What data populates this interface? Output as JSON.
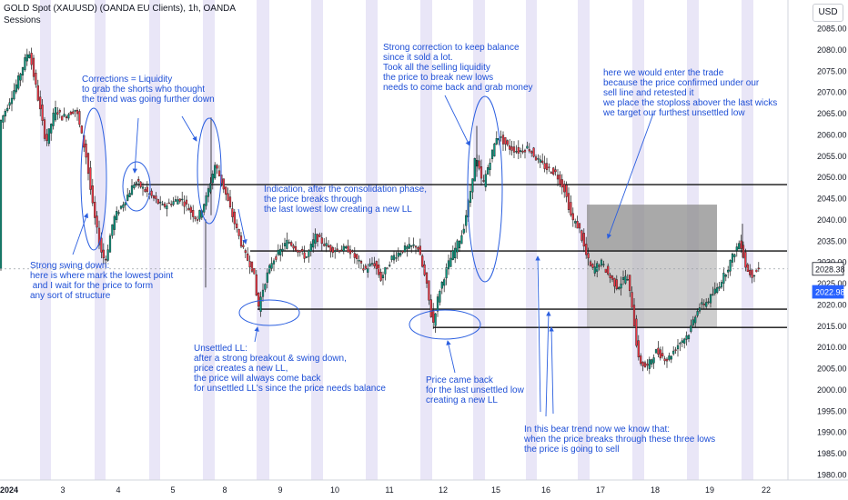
{
  "header": {
    "title": "GOLD Spot (XAUUSD) (OANDA EU Clients), 1h, OANDA",
    "indicator": "Sessions",
    "currency": "USD"
  },
  "chart_data": {
    "type": "candlestick",
    "symbol": "XAUUSD",
    "timeframe": "1h",
    "ylim": [
      1978,
      2088
    ],
    "y_ticks": [
      1980,
      1985,
      1990,
      1995,
      2000,
      2005,
      2010,
      2015,
      2020,
      2025,
      2030,
      2035,
      2040,
      2045,
      2050,
      2055,
      2060,
      2065,
      2070,
      2075,
      2080,
      2085
    ],
    "x_tick_labels": [
      "2024",
      "3",
      "4",
      "5",
      "8",
      "9",
      "10",
      "11",
      "12",
      "15",
      "16",
      "17",
      "18",
      "19",
      "22"
    ],
    "price_labels": [
      {
        "value": 2028.38,
        "text": "2028.38",
        "color": "#131722"
      },
      {
        "value": 2022.98,
        "text": "2022.98",
        "color": "#2962ff"
      }
    ],
    "horizontal_levels": [
      2048.2,
      2032.6,
      2018.9,
      2014.6
    ],
    "path_points": [
      [
        0,
        2062
      ],
      [
        20,
        2072
      ],
      [
        33,
        2080
      ],
      [
        42,
        2070
      ],
      [
        52,
        2058
      ],
      [
        62,
        2066
      ],
      [
        70,
        2064
      ],
      [
        85,
        2066
      ],
      [
        96,
        2055
      ],
      [
        104,
        2042
      ],
      [
        112,
        2033
      ],
      [
        117,
        2030
      ],
      [
        126,
        2040
      ],
      [
        140,
        2045
      ],
      [
        150,
        2049
      ],
      [
        165,
        2046
      ],
      [
        180,
        2043
      ],
      [
        200,
        2045
      ],
      [
        218,
        2040
      ],
      [
        228,
        2045
      ],
      [
        238,
        2053
      ],
      [
        248,
        2047
      ],
      [
        258,
        2040
      ],
      [
        270,
        2032
      ],
      [
        280,
        2028
      ],
      [
        285,
        2019
      ],
      [
        292,
        2025
      ],
      [
        300,
        2030
      ],
      [
        318,
        2035
      ],
      [
        338,
        2031
      ],
      [
        348,
        2036
      ],
      [
        365,
        2033
      ],
      [
        385,
        2033
      ],
      [
        402,
        2028
      ],
      [
        412,
        2030
      ],
      [
        420,
        2026
      ],
      [
        432,
        2031
      ],
      [
        445,
        2033
      ],
      [
        460,
        2034
      ],
      [
        470,
        2025
      ],
      [
        477,
        2015
      ],
      [
        484,
        2023
      ],
      [
        495,
        2030
      ],
      [
        510,
        2037
      ],
      [
        518,
        2046
      ],
      [
        524,
        2055
      ],
      [
        532,
        2048
      ],
      [
        540,
        2054
      ],
      [
        548,
        2060
      ],
      [
        560,
        2057
      ],
      [
        572,
        2056
      ],
      [
        582,
        2057
      ],
      [
        592,
        2054
      ],
      [
        602,
        2052
      ],
      [
        612,
        2051
      ],
      [
        622,
        2047
      ],
      [
        630,
        2040
      ],
      [
        638,
        2038
      ],
      [
        645,
        2032
      ],
      [
        652,
        2028
      ],
      [
        662,
        2030
      ],
      [
        670,
        2027
      ],
      [
        680,
        2024
      ],
      [
        690,
        2027
      ],
      [
        696,
        2020
      ],
      [
        703,
        2007
      ],
      [
        712,
        2005
      ],
      [
        722,
        2009
      ],
      [
        735,
        2007
      ],
      [
        748,
        2011
      ],
      [
        758,
        2013
      ],
      [
        768,
        2019
      ],
      [
        780,
        2021
      ],
      [
        790,
        2024
      ],
      [
        800,
        2028
      ],
      [
        808,
        2032
      ],
      [
        815,
        2035
      ],
      [
        822,
        2028
      ],
      [
        828,
        2027
      ],
      [
        835,
        2028.38
      ]
    ],
    "trade_box": {
      "x_start": "16",
      "x_end": "19",
      "entry": 2032.6,
      "stop": 2043.5,
      "target": 2014.6
    }
  },
  "annotations": {
    "corrections": "Corrections = Liquidity\nto grab the shorts who thought\nthe trend was going further down",
    "strong_correction": "Strong correction to keep balance\nsince it sold a lot.\nTook all the selling liquidity\nthe price to break new lows\nneeds to come back and grab money",
    "entry": "here we would enter the trade\nbecause the price confirmed under our\nsell line and retested it\nwe place the stoploss abover the last wicks\nwe target our furthest unsettled low",
    "indication": "Indication, after the consolidation phase,\nthe price breaks through\nthe last lowest low creating a new LL",
    "swing_down": "Strong swing down:\nhere is where mark the lowest point\n and I wait for the price to form\nany sort of structure",
    "unsettled": "Unsettled LL:\nafter a strong breakout & swing down,\nprice creates a new LL,\nthe price will always come back\nfor unsettled LL's since the price needs balance",
    "came_back": "Price came back\nfor the last unsettled low\ncreating a new LL",
    "bear_trend": "In this bear trend now we know that:\nwhen the price breaks through these three lows\nthe price is going to sell"
  }
}
